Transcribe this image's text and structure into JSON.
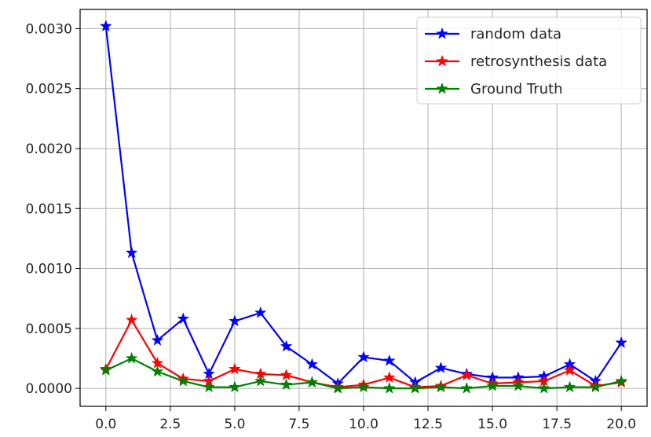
{
  "chart_data": {
    "type": "line",
    "title": "",
    "xlabel": "",
    "ylabel": "",
    "x": [
      0,
      1,
      2,
      3,
      4,
      5,
      6,
      7,
      8,
      9,
      10,
      11,
      12,
      13,
      14,
      15,
      16,
      17,
      18,
      19,
      20
    ],
    "xlim": [
      -1,
      21
    ],
    "ylim": [
      -0.00015,
      0.00316
    ],
    "x_ticks": [
      0,
      2.5,
      5,
      7.5,
      10,
      12.5,
      15,
      17.5,
      20
    ],
    "x_tick_labels": [
      "0.0",
      "2.5",
      "5.0",
      "7.5",
      "10.0",
      "12.5",
      "15.0",
      "17.5",
      "20.0"
    ],
    "y_ticks": [
      0,
      0.0005,
      0.001,
      0.0015,
      0.002,
      0.0025,
      0.003
    ],
    "y_tick_labels": [
      "0.0000",
      "0.0005",
      "0.0010",
      "0.0015",
      "0.0020",
      "0.0025",
      "0.0030"
    ],
    "grid": true,
    "legend_position": "top-right",
    "series": [
      {
        "name": "random data",
        "color": "#0000ff",
        "marker": "star",
        "values": [
          0.00302,
          0.00113,
          0.0004,
          0.00058,
          0.00012,
          0.00056,
          0.00063,
          0.00035,
          0.0002,
          4e-05,
          0.00026,
          0.00023,
          5e-05,
          0.00017,
          0.00012,
          9e-05,
          9e-05,
          0.0001,
          0.0002,
          6e-05,
          0.00038
        ]
      },
      {
        "name": "retrosynthesis data",
        "color": "#ff0000",
        "marker": "star",
        "values": [
          0.00016,
          0.00057,
          0.00021,
          8e-05,
          6e-05,
          0.00016,
          0.00012,
          0.00011,
          5e-05,
          1e-05,
          3e-05,
          9e-05,
          1e-05,
          2e-05,
          0.00011,
          4e-05,
          5e-05,
          6e-05,
          0.00015,
          2e-05,
          5e-05
        ]
      },
      {
        "name": "Ground Truth",
        "color": "#008000",
        "marker": "star",
        "values": [
          0.00015,
          0.00025,
          0.00014,
          6e-05,
          1e-05,
          1e-05,
          6e-05,
          3e-05,
          5e-05,
          0.0,
          1e-05,
          0.0,
          0.0,
          1e-05,
          0.0,
          2e-05,
          2e-05,
          0.0,
          1e-05,
          1e-05,
          6e-05
        ]
      }
    ]
  }
}
